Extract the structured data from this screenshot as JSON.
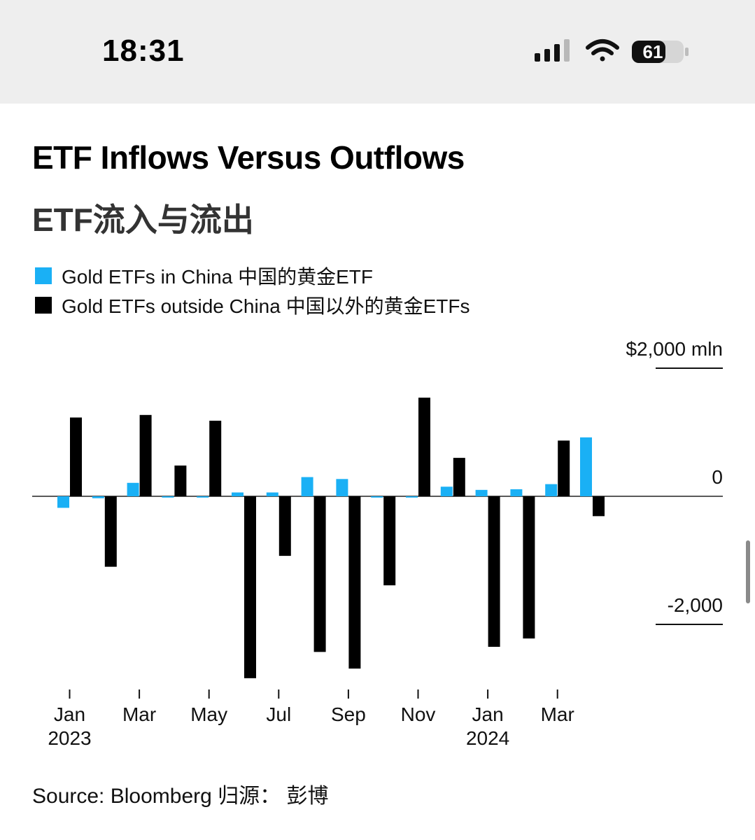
{
  "status_bar": {
    "time": "18:31",
    "battery_level": "61",
    "icons": [
      "cellular-signal-icon",
      "wifi-icon",
      "battery-icon"
    ]
  },
  "chart": {
    "title": "ETF Inflows Versus Outflows",
    "subtitle": "ETF流入与流出",
    "source": "Source: Bloomberg 归源： 彭博"
  },
  "colors": {
    "china": "#1ab0f5",
    "outside": "#000000",
    "status_bg": "#eeeeee"
  },
  "chart_data": {
    "type": "bar",
    "title": "ETF Inflows Versus Outflows",
    "subtitle": "ETF流入与流出",
    "categories": [
      "Jan 2023",
      "Feb 2023",
      "Mar 2023",
      "Apr 2023",
      "May 2023",
      "Jun 2023",
      "Jul 2023",
      "Aug 2023",
      "Sep 2023",
      "Oct 2023",
      "Nov 2023",
      "Dec 2023",
      "Jan 2024",
      "Feb 2024",
      "Mar 2024",
      "Apr 2024"
    ],
    "series": [
      {
        "name": "Gold ETFs in China 中国的黄金ETF",
        "color": "#1ab0f5",
        "values": [
          -180,
          -30,
          210,
          -20,
          -20,
          60,
          60,
          300,
          270,
          -20,
          -20,
          150,
          100,
          110,
          190,
          920
        ]
      },
      {
        "name": "Gold ETFs outside China 中国以外的黄金ETFs",
        "color": "#000000",
        "values": [
          1230,
          -1100,
          1270,
          480,
          1180,
          -2840,
          -930,
          -2430,
          -2690,
          -1390,
          1540,
          600,
          -2350,
          -2220,
          870,
          -310
        ]
      }
    ],
    "yticks": [
      {
        "value": 2000,
        "label": "$2,000 mln"
      },
      {
        "value": 0,
        "label": "0"
      },
      {
        "value": -2000,
        "label": "-2,000"
      }
    ],
    "xticks": [
      {
        "index": 0,
        "label": "Jan",
        "year": "2023"
      },
      {
        "index": 2,
        "label": "Mar",
        "year": ""
      },
      {
        "index": 4,
        "label": "May",
        "year": ""
      },
      {
        "index": 6,
        "label": "Jul",
        "year": ""
      },
      {
        "index": 8,
        "label": "Sep",
        "year": ""
      },
      {
        "index": 10,
        "label": "Nov",
        "year": ""
      },
      {
        "index": 12,
        "label": "Jan",
        "year": "2024"
      },
      {
        "index": 14,
        "label": "Mar",
        "year": ""
      }
    ],
    "ylim": [
      -3000,
      2000
    ],
    "grid": false,
    "legend_position": "top-left"
  }
}
